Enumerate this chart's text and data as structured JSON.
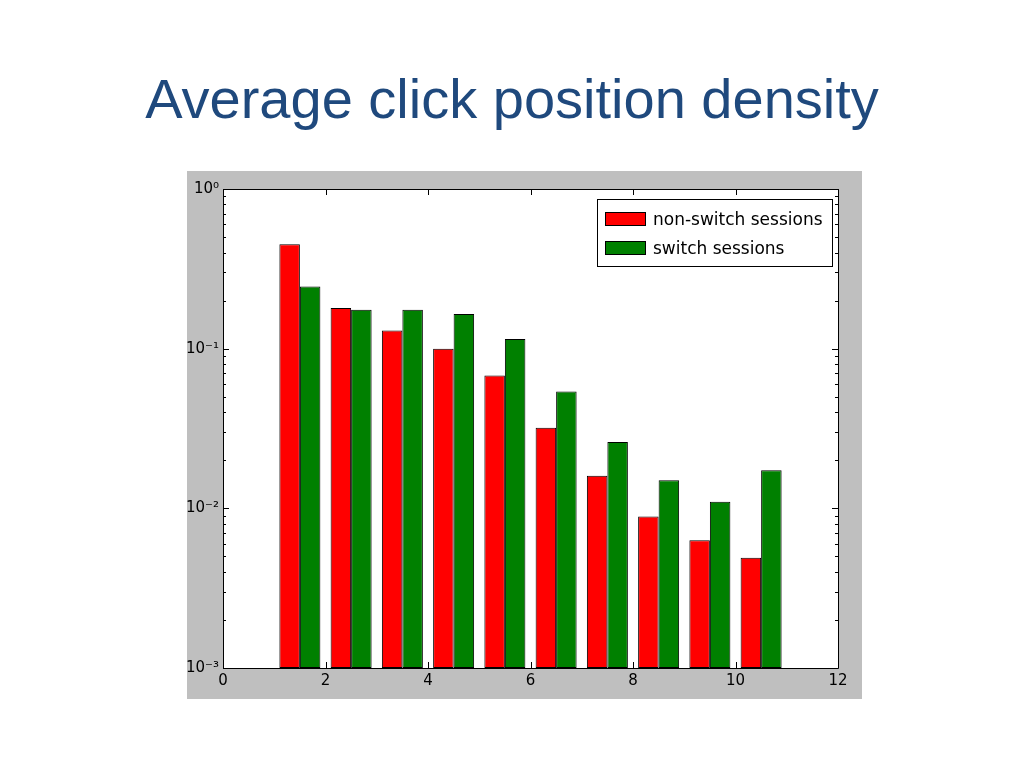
{
  "chart_data": {
    "type": "histogram",
    "title": "Average click position density",
    "bins": [
      1,
      2,
      3,
      4,
      5,
      6,
      7,
      8,
      9,
      10,
      11
    ],
    "series": [
      {
        "name": "non-switch sessions",
        "color": "#ff0000",
        "values": [
          0.45,
          0.18,
          0.13,
          0.1,
          0.068,
          0.032,
          0.016,
          0.0089,
          0.0063,
          0.0049
        ]
      },
      {
        "name": "switch sessions",
        "color": "#008000",
        "values": [
          0.245,
          0.175,
          0.175,
          0.165,
          0.115,
          0.054,
          0.026,
          0.015,
          0.011,
          0.0173
        ]
      }
    ],
    "xlim": [
      0,
      12
    ],
    "xticks": [
      0,
      2,
      4,
      6,
      8,
      10,
      12
    ],
    "ylim": [
      0.001,
      1
    ],
    "yticks": [
      {
        "value": 0.001,
        "label": "10⁻³"
      },
      {
        "value": 0.002,
        "label": null
      },
      {
        "value": 0.003,
        "label": null
      },
      {
        "value": 0.004,
        "label": null
      },
      {
        "value": 0.005,
        "label": null
      },
      {
        "value": 0.006,
        "label": null
      },
      {
        "value": 0.007,
        "label": null
      },
      {
        "value": 0.008,
        "label": null
      },
      {
        "value": 0.009,
        "label": null
      },
      {
        "value": 0.01,
        "label": "10⁻²"
      },
      {
        "value": 0.02,
        "label": null
      },
      {
        "value": 0.03,
        "label": null
      },
      {
        "value": 0.04,
        "label": null
      },
      {
        "value": 0.05,
        "label": null
      },
      {
        "value": 0.06,
        "label": null
      },
      {
        "value": 0.07,
        "label": null
      },
      {
        "value": 0.08,
        "label": null
      },
      {
        "value": 0.09,
        "label": null
      },
      {
        "value": 0.1,
        "label": "10⁻¹"
      },
      {
        "value": 0.2,
        "label": null
      },
      {
        "value": 0.3,
        "label": null
      },
      {
        "value": 0.4,
        "label": null
      },
      {
        "value": 0.5,
        "label": null
      },
      {
        "value": 0.6,
        "label": null
      },
      {
        "value": 0.7,
        "label": null
      },
      {
        "value": 0.8,
        "label": null
      },
      {
        "value": 0.9,
        "label": null
      },
      {
        "value": 1,
        "label": "10⁰"
      }
    ],
    "log": "y",
    "legend": "top right"
  }
}
